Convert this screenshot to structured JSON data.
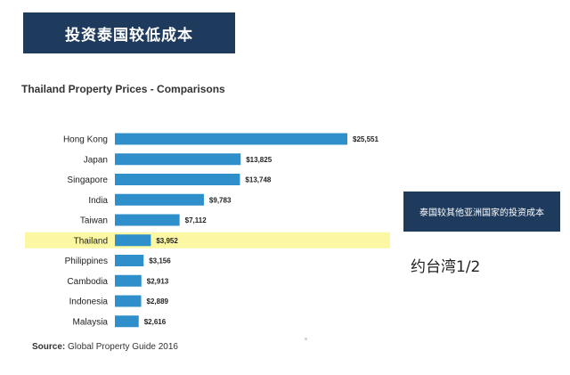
{
  "banner": {
    "text": "投资泰国较低成本"
  },
  "callout": {
    "text": "泰国较其他亚洲国家的投资成本"
  },
  "note": {
    "text": "约台湾1/2"
  },
  "colors": {
    "bar": "#2e8fcb",
    "highlight": "#fbf7a2",
    "banner": "#1e3a5c"
  },
  "chart_data": {
    "type": "bar",
    "orientation": "horizontal",
    "title": "Thailand Property Prices - Comparisons",
    "source_label": "Source:",
    "source_text": "Global Property Guide 2016",
    "categories": [
      "Hong Kong",
      "Japan",
      "Singapore",
      "India",
      "Taiwan",
      "Thailand",
      "Philippines",
      "Cambodia",
      "Indonesia",
      "Malaysia"
    ],
    "values": [
      25551,
      13825,
      13748,
      9783,
      7112,
      3952,
      3156,
      2913,
      2889,
      2616
    ],
    "value_labels": [
      "$25,551",
      "$13,825",
      "$13,748",
      "$9,783",
      "$7,112",
      "$3,952",
      "$3,156",
      "$2,913",
      "$2,889",
      "$2,616"
    ],
    "highlight_category": "Thailand",
    "xlim": [
      0,
      25551
    ],
    "grid": false,
    "legend": "none"
  }
}
